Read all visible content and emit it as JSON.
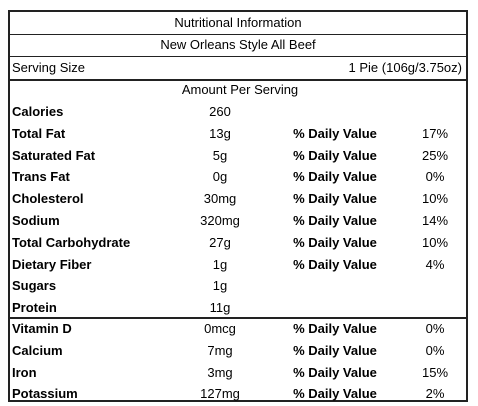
{
  "header": {
    "title": "Nutritional Information",
    "subtitle": "New Orleans Style All Beef"
  },
  "serving": {
    "label": "Serving Size",
    "value": "1 Pie (106g/3.75oz)"
  },
  "amount_header": "Amount Per Serving",
  "nutrients": [
    {
      "name": "Calories",
      "amount": "260"
    },
    {
      "name": "Total Fat",
      "amount": "13g",
      "dv_label": "% Daily Value",
      "dv": "17%"
    },
    {
      "name": "Saturated Fat",
      "amount": "5g",
      "dv_label": "% Daily Value",
      "dv": "25%"
    },
    {
      "name": "Trans Fat",
      "amount": "0g",
      "dv_label": "% Daily Value",
      "dv": "0%"
    },
    {
      "name": "Cholesterol",
      "amount": "30mg",
      "dv_label": "% Daily Value",
      "dv": "10%"
    },
    {
      "name": "Sodium",
      "amount": "320mg",
      "dv_label": "% Daily Value",
      "dv": "14%"
    },
    {
      "name": "Total Carbohydrate",
      "amount": "27g",
      "dv_label": "% Daily Value",
      "dv": "10%"
    },
    {
      "name": "Dietary Fiber",
      "amount": "1g",
      "dv_label": "% Daily Value",
      "dv": "4%"
    },
    {
      "name": "Sugars",
      "amount": "1g"
    },
    {
      "name": "Protein",
      "amount": "11g"
    }
  ],
  "vitamins": [
    {
      "name": "Vitamin D",
      "amount": "0mcg",
      "dv_label": "% Daily Value",
      "dv": "0%"
    },
    {
      "name": "Calcium",
      "amount": "7mg",
      "dv_label": "% Daily Value",
      "dv": "0%"
    },
    {
      "name": "Iron",
      "amount": "3mg",
      "dv_label": "% Daily Value",
      "dv": "15%"
    },
    {
      "name": "Potassium",
      "amount": "127mg",
      "dv_label": "% Daily Value",
      "dv": "2%"
    }
  ]
}
